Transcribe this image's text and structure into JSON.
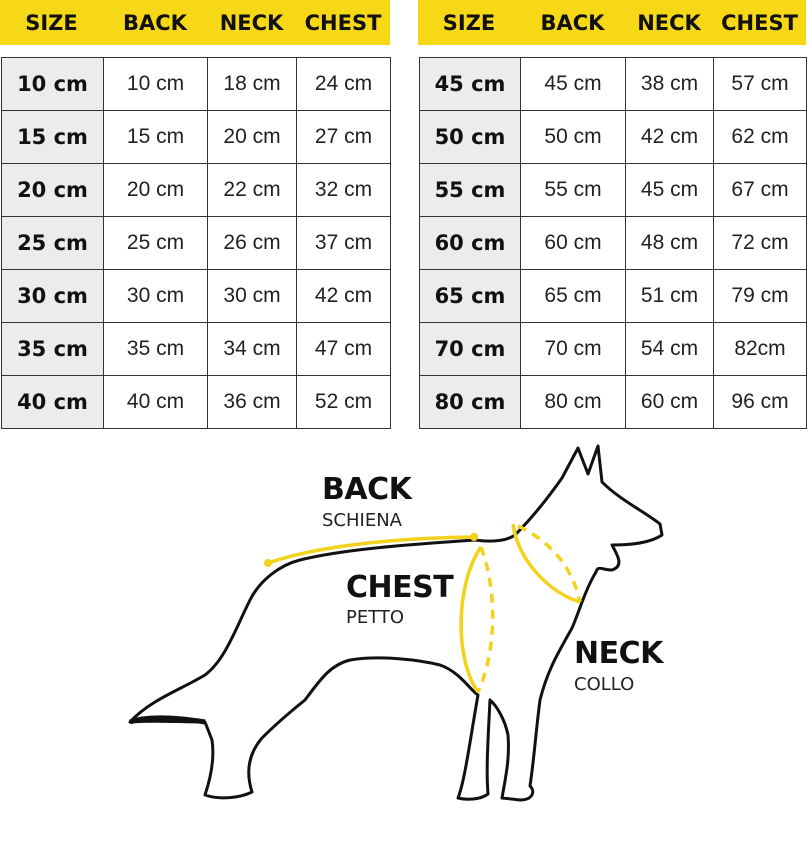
{
  "headers": [
    "SIZE",
    "BACK",
    "NECK",
    "CHEST"
  ],
  "left_table": [
    [
      "10 cm",
      "10 cm",
      "18 cm",
      "24 cm"
    ],
    [
      "15 cm",
      "15 cm",
      "20 cm",
      "27 cm"
    ],
    [
      "20 cm",
      "20 cm",
      "22 cm",
      "32 cm"
    ],
    [
      "25 cm",
      "25 cm",
      "26 cm",
      "37 cm"
    ],
    [
      "30 cm",
      "30 cm",
      "30 cm",
      "42 cm"
    ],
    [
      "35 cm",
      "35 cm",
      "34 cm",
      "47 cm"
    ],
    [
      "40 cm",
      "40 cm",
      "36 cm",
      "52 cm"
    ]
  ],
  "right_table": [
    [
      "45 cm",
      "45 cm",
      "38 cm",
      "57 cm"
    ],
    [
      "50 cm",
      "50 cm",
      "42 cm",
      "62 cm"
    ],
    [
      "55 cm",
      "55 cm",
      "45 cm",
      "67 cm"
    ],
    [
      "60 cm",
      "60 cm",
      "48 cm",
      "72 cm"
    ],
    [
      "65 cm",
      "65 cm",
      "51 cm",
      "79 cm"
    ],
    [
      "70 cm",
      "70 cm",
      "54 cm",
      "82cm"
    ],
    [
      "80 cm",
      "80 cm",
      "60 cm",
      "96 cm"
    ]
  ],
  "diagram": {
    "back": {
      "title": "BACK",
      "subtitle": "SCHIENA"
    },
    "chest": {
      "title": "CHEST",
      "subtitle": "PETTO"
    },
    "neck": {
      "title": "NECK",
      "subtitle": "COLLO"
    }
  },
  "colors": {
    "accent": "#f7d817",
    "size_cell": "#ececec",
    "measure_line": "#f2d21a"
  }
}
